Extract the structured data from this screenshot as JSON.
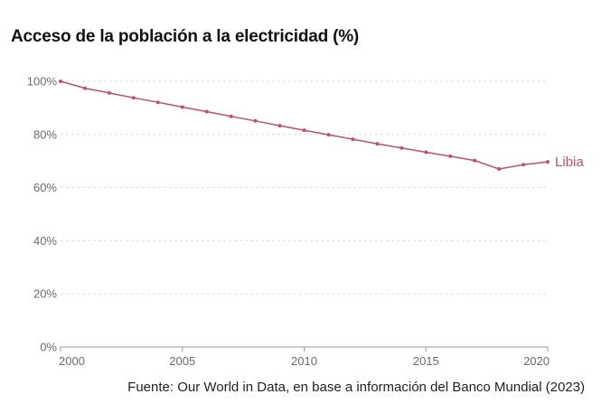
{
  "title": "Acceso de la población a la electricidad (%)",
  "source": "Fuente: Our World in Data, en base a información del Banco Mundial (2023)",
  "colors": {
    "series": "#c0506a",
    "grid": "#dddddd",
    "axis": "#9a9a9a",
    "tick": "#6b6b6b"
  },
  "chart_data": {
    "type": "line",
    "title": "Acceso de la población a la electricidad (%)",
    "xlabel": "",
    "ylabel": "",
    "xlim": [
      2000,
      2020
    ],
    "ylim": [
      0,
      100
    ],
    "x_ticks": [
      2000,
      2005,
      2010,
      2015,
      2020
    ],
    "x_tick_labels": [
      "2000",
      "2005",
      "2010",
      "2015",
      "2020"
    ],
    "y_ticks": [
      0,
      20,
      40,
      60,
      80,
      100
    ],
    "y_tick_labels": [
      "0%",
      "20%",
      "40%",
      "60%",
      "80%",
      "100%"
    ],
    "grid": "horizontal dashed",
    "legend": "none",
    "series": [
      {
        "name": "Libia",
        "color": "#c0506a",
        "x": [
          2000,
          2001,
          2002,
          2003,
          2004,
          2005,
          2006,
          2007,
          2008,
          2009,
          2010,
          2011,
          2012,
          2013,
          2014,
          2015,
          2016,
          2017,
          2018,
          2019,
          2020
        ],
        "values": [
          100,
          97.4,
          95.6,
          93.8,
          92.1,
          90.3,
          88.6,
          86.8,
          85.1,
          83.3,
          81.6,
          79.9,
          78.2,
          76.5,
          74.9,
          73.3,
          71.8,
          70.2,
          67.0,
          68.6,
          69.7
        ]
      }
    ]
  }
}
